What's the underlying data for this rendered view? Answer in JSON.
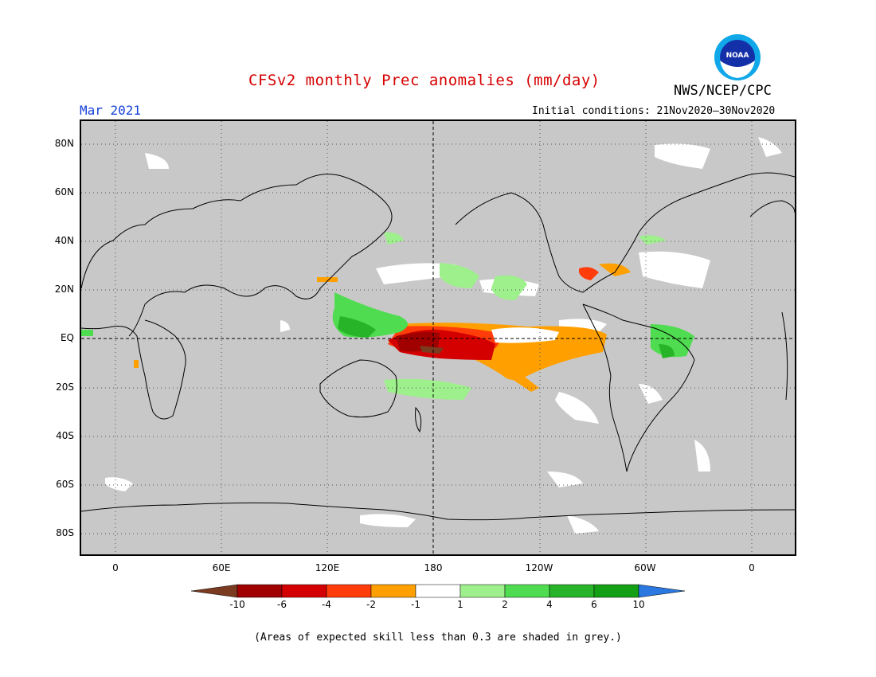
{
  "title": "CFSv2 monthly Prec anomalies (mm/day)",
  "agency": "NWS/NCEP/CPC",
  "valid_month": "Mar 2021",
  "initial_conditions": "Initial conditions: 21Nov2020–30Nov2020",
  "logo_text": "NOAA",
  "lat_labels": [
    "80N",
    "60N",
    "40N",
    "20N",
    "EQ",
    "20S",
    "40S",
    "60S",
    "80S"
  ],
  "lon_labels": [
    "0",
    "60E",
    "120E",
    "180",
    "120W",
    "60W",
    "0"
  ],
  "colorbar": {
    "labels": [
      "-10",
      "-6",
      "-4",
      "-2",
      "-1",
      "1",
      "2",
      "4",
      "6",
      "10"
    ],
    "colors": [
      "#7a3b20",
      "#a00000",
      "#d40000",
      "#ff3c0a",
      "#ffa000",
      "#ffffff",
      "#9ef08c",
      "#50dc50",
      "#28b428",
      "#14a014",
      "#2a78e0"
    ]
  },
  "note": "(Areas of expected skill less than 0.3 are shaded in grey.)"
}
